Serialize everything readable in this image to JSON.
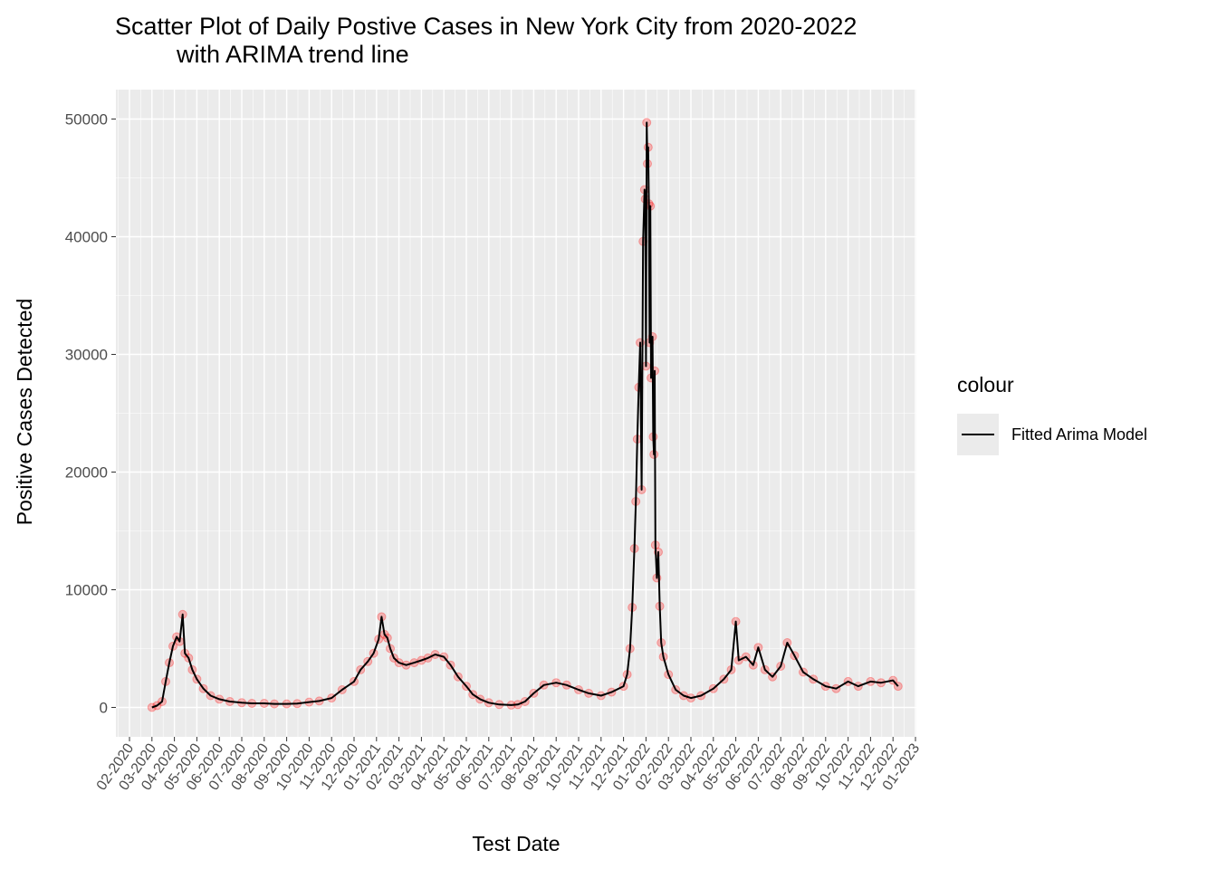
{
  "chart_data": {
    "type": "scatter",
    "title_line1": "Scatter Plot of Daily Postive Cases in New York City from 2020-2022",
    "title_line2": "with ARIMA trend line",
    "xlabel": "Test Date",
    "ylabel": "Positive Cases Detected",
    "ylim": [
      -2500,
      52500
    ],
    "y_ticks": [
      0,
      10000,
      20000,
      30000,
      40000,
      50000
    ],
    "x_ticks": [
      "02-2020",
      "03-2020",
      "04-2020",
      "05-2020",
      "06-2020",
      "07-2020",
      "08-2020",
      "09-2020",
      "10-2020",
      "11-2020",
      "12-2020",
      "01-2021",
      "02-2021",
      "03-2021",
      "04-2021",
      "05-2021",
      "06-2021",
      "07-2021",
      "08-2021",
      "09-2021",
      "10-2021",
      "11-2021",
      "12-2021",
      "01-2022",
      "02-2022",
      "03-2022",
      "04-2022",
      "05-2022",
      "06-2022",
      "07-2022",
      "08-2022",
      "09-2022",
      "10-2022",
      "11-2022",
      "12-2022",
      "01-2023"
    ],
    "x_tick_label_angle": 55,
    "grid": true,
    "legend_position": "right",
    "legend_title": "colour",
    "series": [
      {
        "name": "Fitted Arima Model",
        "kind": "line",
        "color": "#000000"
      },
      {
        "kind": "points",
        "color": "#ff0000",
        "opacity": 0.25
      }
    ],
    "observed_points": [
      [
        "2020-03-01",
        0
      ],
      [
        "2020-03-08",
        150
      ],
      [
        "2020-03-15",
        500
      ],
      [
        "2020-03-20",
        2200
      ],
      [
        "2020-03-25",
        3800
      ],
      [
        "2020-03-30",
        5200
      ],
      [
        "2020-04-04",
        6000
      ],
      [
        "2020-04-08",
        5600
      ],
      [
        "2020-04-12",
        7900
      ],
      [
        "2020-04-15",
        4600
      ],
      [
        "2020-04-20",
        4200
      ],
      [
        "2020-04-25",
        3200
      ],
      [
        "2020-05-01",
        2400
      ],
      [
        "2020-05-10",
        1600
      ],
      [
        "2020-05-20",
        1000
      ],
      [
        "2020-06-01",
        700
      ],
      [
        "2020-06-15",
        500
      ],
      [
        "2020-07-01",
        400
      ],
      [
        "2020-07-15",
        350
      ],
      [
        "2020-08-01",
        350
      ],
      [
        "2020-08-15",
        300
      ],
      [
        "2020-09-01",
        300
      ],
      [
        "2020-09-15",
        320
      ],
      [
        "2020-10-01",
        450
      ],
      [
        "2020-10-15",
        550
      ],
      [
        "2020-11-01",
        800
      ],
      [
        "2020-11-15",
        1500
      ],
      [
        "2020-12-01",
        2200
      ],
      [
        "2020-12-10",
        3200
      ],
      [
        "2020-12-20",
        3900
      ],
      [
        "2020-12-28",
        4600
      ],
      [
        "2021-01-04",
        5800
      ],
      [
        "2021-01-08",
        7700
      ],
      [
        "2021-01-12",
        6200
      ],
      [
        "2021-01-16",
        5900
      ],
      [
        "2021-01-20",
        5000
      ],
      [
        "2021-01-25",
        4200
      ],
      [
        "2021-02-01",
        3800
      ],
      [
        "2021-02-10",
        3600
      ],
      [
        "2021-02-20",
        3800
      ],
      [
        "2021-03-01",
        4000
      ],
      [
        "2021-03-10",
        4200
      ],
      [
        "2021-03-20",
        4500
      ],
      [
        "2021-04-01",
        4300
      ],
      [
        "2021-04-10",
        3600
      ],
      [
        "2021-04-20",
        2600
      ],
      [
        "2021-05-01",
        1800
      ],
      [
        "2021-05-10",
        1100
      ],
      [
        "2021-05-20",
        700
      ],
      [
        "2021-06-01",
        400
      ],
      [
        "2021-06-15",
        250
      ],
      [
        "2021-07-01",
        200
      ],
      [
        "2021-07-10",
        250
      ],
      [
        "2021-07-20",
        500
      ],
      [
        "2021-08-01",
        1200
      ],
      [
        "2021-08-15",
        1900
      ],
      [
        "2021-09-01",
        2100
      ],
      [
        "2021-09-15",
        1900
      ],
      [
        "2021-10-01",
        1500
      ],
      [
        "2021-10-15",
        1200
      ],
      [
        "2021-11-01",
        1000
      ],
      [
        "2021-11-15",
        1300
      ],
      [
        "2021-12-01",
        1800
      ],
      [
        "2021-12-06",
        2800
      ],
      [
        "2021-12-10",
        5000
      ],
      [
        "2021-12-13",
        8500
      ],
      [
        "2021-12-16",
        13500
      ],
      [
        "2021-12-18",
        17500
      ],
      [
        "2021-12-20",
        22800
      ],
      [
        "2021-12-22",
        27200
      ],
      [
        "2021-12-24",
        31000
      ],
      [
        "2021-12-26",
        18500
      ],
      [
        "2021-12-28",
        39600
      ],
      [
        "2021-12-30",
        44000
      ],
      [
        "2021-12-31",
        43200
      ],
      [
        "2022-01-01",
        29000
      ],
      [
        "2022-01-02",
        49700
      ],
      [
        "2022-01-03",
        46200
      ],
      [
        "2022-01-04",
        47600
      ],
      [
        "2022-01-05",
        42800
      ],
      [
        "2022-01-06",
        31000
      ],
      [
        "2022-01-07",
        42600
      ],
      [
        "2022-01-08",
        28000
      ],
      [
        "2022-01-10",
        31500
      ],
      [
        "2022-01-11",
        23000
      ],
      [
        "2022-01-12",
        21500
      ],
      [
        "2022-01-13",
        28600
      ],
      [
        "2022-01-14",
        13800
      ],
      [
        "2022-01-16",
        11000
      ],
      [
        "2022-01-18",
        13200
      ],
      [
        "2022-01-20",
        8600
      ],
      [
        "2022-01-22",
        5500
      ],
      [
        "2022-01-25",
        4300
      ],
      [
        "2022-02-01",
        2800
      ],
      [
        "2022-02-10",
        1500
      ],
      [
        "2022-02-20",
        1000
      ],
      [
        "2022-03-01",
        800
      ],
      [
        "2022-03-15",
        1000
      ],
      [
        "2022-04-01",
        1600
      ],
      [
        "2022-04-15",
        2400
      ],
      [
        "2022-04-25",
        3200
      ],
      [
        "2022-05-01",
        7300
      ],
      [
        "2022-05-05",
        4000
      ],
      [
        "2022-05-15",
        4300
      ],
      [
        "2022-05-25",
        3600
      ],
      [
        "2022-06-01",
        5100
      ],
      [
        "2022-06-10",
        3200
      ],
      [
        "2022-06-20",
        2600
      ],
      [
        "2022-07-01",
        3500
      ],
      [
        "2022-07-10",
        5500
      ],
      [
        "2022-07-20",
        4400
      ],
      [
        "2022-08-01",
        3000
      ],
      [
        "2022-08-15",
        2400
      ],
      [
        "2022-09-01",
        1800
      ],
      [
        "2022-09-15",
        1600
      ],
      [
        "2022-10-01",
        2200
      ],
      [
        "2022-10-15",
        1800
      ],
      [
        "2022-11-01",
        2200
      ],
      [
        "2022-11-15",
        2100
      ],
      [
        "2022-12-01",
        2300
      ],
      [
        "2022-12-08",
        1800
      ]
    ]
  }
}
